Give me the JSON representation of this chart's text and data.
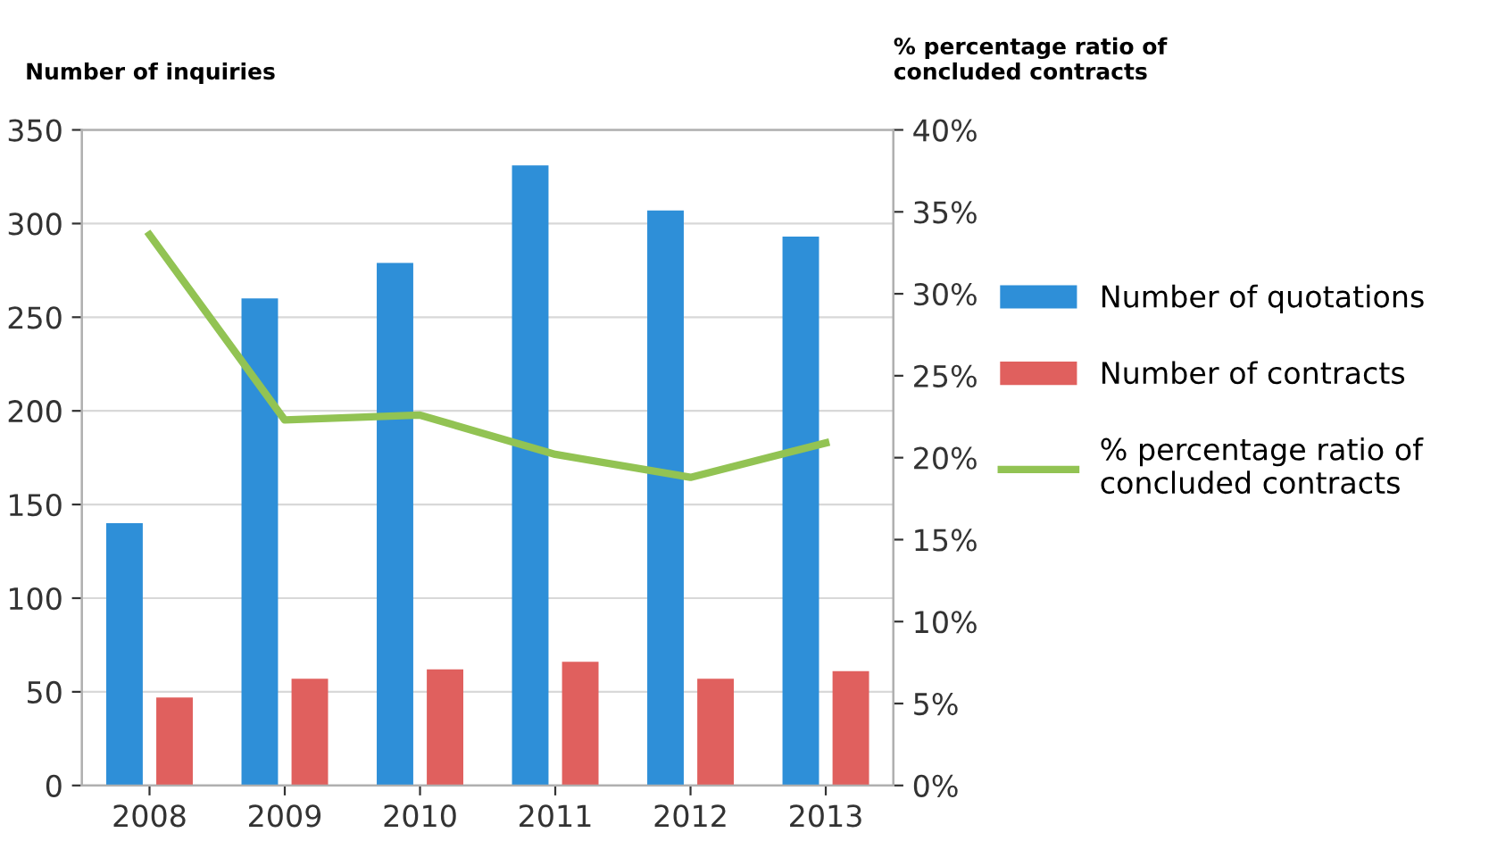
{
  "chart_data": {
    "type": "bar",
    "ylabel": "Number of inquiries",
    "y2label": "% percentage ratio of\nconcluded contracts",
    "categories": [
      "2008",
      "2009",
      "2010",
      "2011",
      "2012",
      "2013"
    ],
    "series": [
      {
        "name": "Number of quotations",
        "color": "#2e8fd8",
        "values": [
          140,
          260,
          279,
          331,
          307,
          293
        ]
      },
      {
        "name": "Number of contracts",
        "color": "#e0605e",
        "values": [
          47,
          57,
          62,
          66,
          57,
          61
        ]
      },
      {
        "name": "% percentage ratio of\nconcluded contracts",
        "type": "line",
        "axis": "y2",
        "color": "#92c353",
        "values": [
          33.6,
          22.3,
          22.6,
          20.2,
          18.8,
          20.9
        ]
      }
    ],
    "ylim": [
      0,
      350
    ],
    "yticks": [
      0,
      50,
      100,
      150,
      200,
      250,
      300,
      350
    ],
    "y2lim": [
      0,
      40
    ],
    "y2ticks": [
      {
        "value": 0,
        "label": "0%"
      },
      {
        "value": 5,
        "label": "5%"
      },
      {
        "value": 10,
        "label": "10%"
      },
      {
        "value": 15,
        "label": "15%"
      },
      {
        "value": 20,
        "label": "20%"
      },
      {
        "value": 25,
        "label": "25%"
      },
      {
        "value": 30,
        "label": "30%"
      },
      {
        "value": 35,
        "label": "35%"
      },
      {
        "value": 40,
        "label": "40%"
      }
    ],
    "grid": "y",
    "legend": "right",
    "marker": "none"
  }
}
